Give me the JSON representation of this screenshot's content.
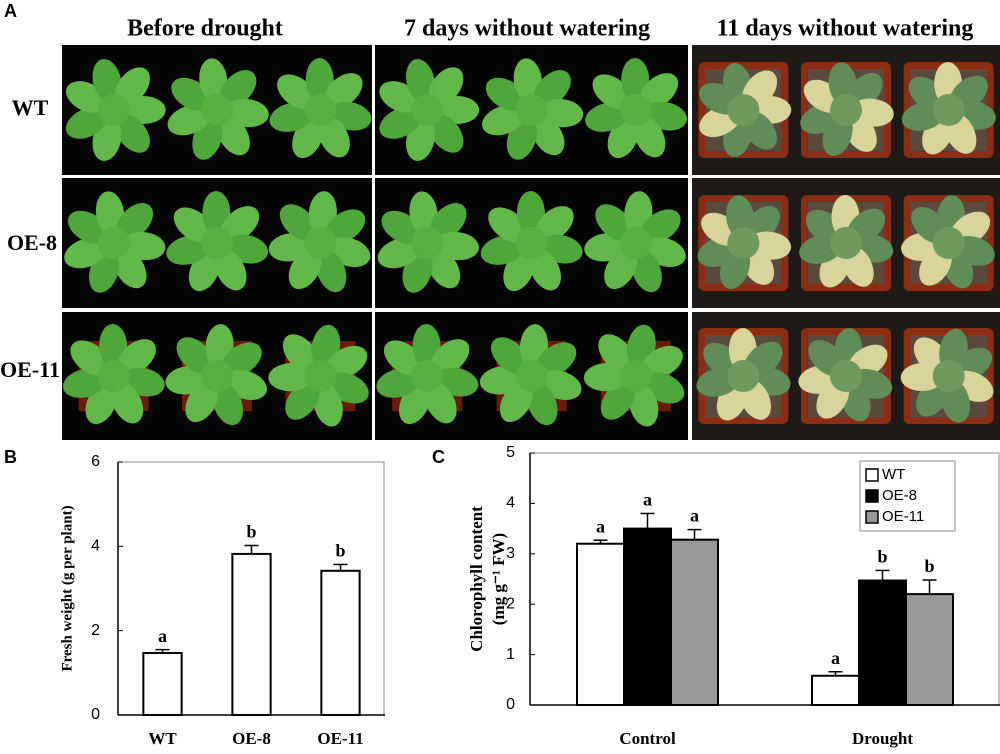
{
  "panel_a": {
    "label": "A",
    "columns": [
      "Before drought",
      "7 days without watering",
      "11 days without watering"
    ],
    "rows": [
      "WT",
      "OE-8",
      "OE-11"
    ]
  },
  "chart_data": [
    {
      "type": "bar",
      "panel": "B",
      "ylabel": "Fresh weight (g per plant)",
      "categories": [
        "WT",
        "OE-8",
        "OE-11"
      ],
      "series": [
        {
          "color": "#ffffff",
          "values": [
            1.47,
            3.82,
            3.42
          ],
          "errors": [
            0.08,
            0.2,
            0.15
          ],
          "labels": [
            "a",
            "b",
            "b"
          ]
        }
      ],
      "ylim": [
        0,
        6
      ],
      "yticks": [
        0,
        2,
        4,
        6
      ]
    },
    {
      "type": "bar",
      "panel": "C",
      "ylabel": [
        "Chlorophyll content",
        "(mg g⁻¹ FW)"
      ],
      "categories": [
        "Control",
        "Drought"
      ],
      "series": [
        {
          "name": "WT",
          "color": "#ffffff",
          "values": [
            3.2,
            0.58
          ],
          "errors": [
            0.07,
            0.08
          ],
          "labels": [
            "a",
            "a"
          ]
        },
        {
          "name": "OE-8",
          "color": "#000000",
          "values": [
            3.5,
            2.47
          ],
          "errors": [
            0.3,
            0.2
          ],
          "labels": [
            "a",
            "b"
          ]
        },
        {
          "name": "OE-11",
          "color": "#999999",
          "values": [
            3.28,
            2.2
          ],
          "errors": [
            0.2,
            0.28
          ],
          "labels": [
            "a",
            "b"
          ]
        }
      ],
      "ylim": [
        0,
        5
      ],
      "yticks": [
        0,
        1,
        2,
        3,
        4,
        5
      ],
      "legend": "top-right"
    }
  ]
}
